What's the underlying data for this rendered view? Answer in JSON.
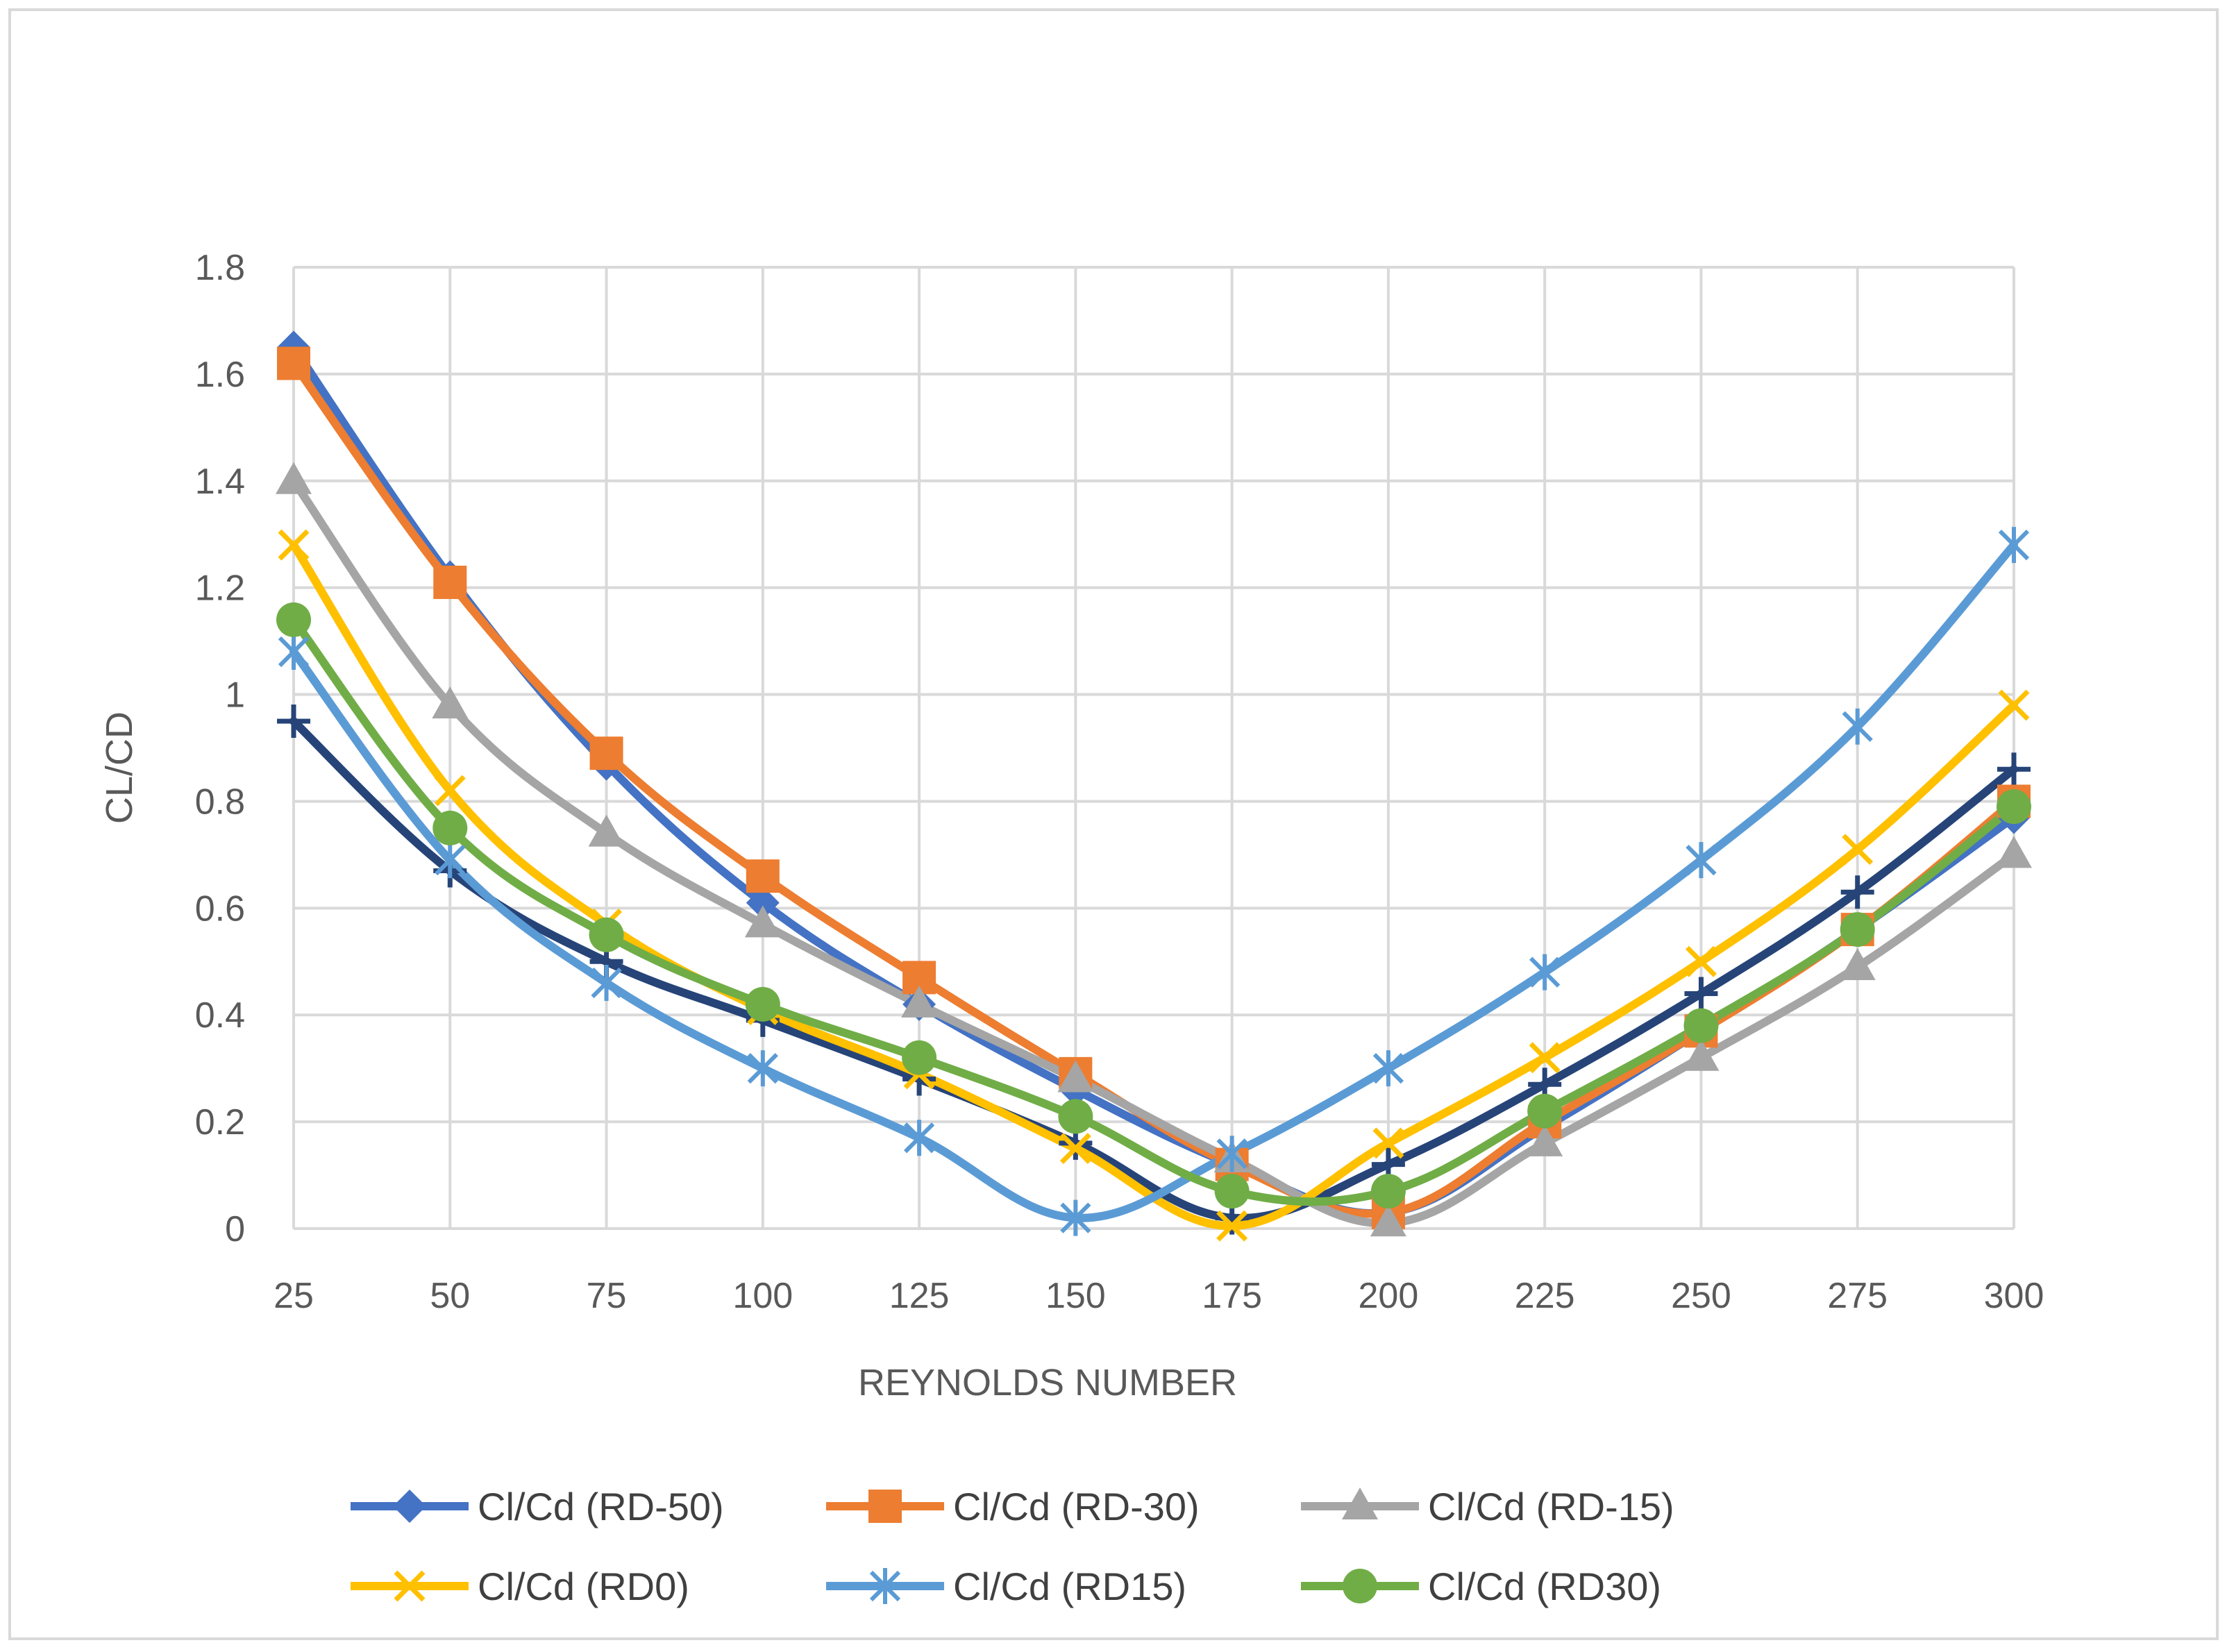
{
  "chart_data": {
    "type": "line",
    "title": "",
    "xlabel": "REYNOLDS NUMBER",
    "ylabel": "CL/CD",
    "x": [
      25,
      50,
      75,
      100,
      125,
      150,
      175,
      200,
      225,
      250,
      275,
      300
    ],
    "x_tick_labels": [
      "25",
      "50",
      "75",
      "100",
      "125",
      "150",
      "175",
      "200",
      "225",
      "250",
      "275",
      "300"
    ],
    "ylim": [
      0,
      1.8
    ],
    "y_tick_labels": [
      "0",
      "0.2",
      "0.4",
      "0.6",
      "0.8",
      "1",
      "1.2",
      "1.4",
      "1.6",
      "1.8"
    ],
    "y_ticks": [
      0,
      0.2,
      0.4,
      0.6,
      0.8,
      1.0,
      1.2,
      1.4,
      1.6,
      1.8
    ],
    "grid": true,
    "legend_position": "bottom",
    "series": [
      {
        "name": "Cl/Cd (RD-50)",
        "color": "#4472C4",
        "marker": "diamond",
        "values": [
          1.65,
          1.22,
          0.87,
          0.61,
          0.42,
          0.26,
          0.12,
          0.03,
          0.19,
          0.37,
          0.56,
          0.77
        ]
      },
      {
        "name": "Cl/Cd (RD-30)",
        "color": "#ED7D31",
        "marker": "square",
        "values": [
          1.62,
          1.21,
          0.89,
          0.66,
          0.47,
          0.29,
          0.12,
          0.03,
          0.2,
          0.37,
          0.56,
          0.8
        ]
      },
      {
        "name": "Cl/Cd (RD-15)",
        "color": "#A5A5A5",
        "marker": "triangle",
        "values": [
          1.4,
          0.98,
          0.74,
          0.57,
          0.42,
          0.28,
          0.13,
          0.01,
          0.16,
          0.32,
          0.49,
          0.7
        ]
      },
      {
        "name": "Cl/Cd (RD0)",
        "color": "#FFC000",
        "marker": "x",
        "values": [
          1.28,
          0.82,
          0.57,
          0.41,
          0.29,
          0.15,
          0.005,
          0.16,
          0.32,
          0.5,
          0.71,
          0.98
        ]
      },
      {
        "name": "Cl/Cd (RD15)",
        "color": "#5B9BD5",
        "marker": "star",
        "values": [
          1.08,
          0.69,
          0.46,
          0.3,
          0.17,
          0.02,
          0.14,
          0.3,
          0.48,
          0.69,
          0.94,
          1.28
        ]
      },
      {
        "name": "Cl/Cd (RD30)",
        "color": "#70AD47",
        "marker": "circle",
        "values": [
          1.14,
          0.75,
          0.55,
          0.42,
          0.32,
          0.21,
          0.07,
          0.07,
          0.22,
          0.38,
          0.56,
          0.79
        ]
      },
      {
        "name": "",
        "color": "#264478",
        "marker": "plus",
        "values": [
          0.95,
          0.67,
          0.5,
          0.39,
          0.28,
          0.16,
          0.02,
          0.12,
          0.27,
          0.44,
          0.63,
          0.86
        ]
      }
    ]
  }
}
